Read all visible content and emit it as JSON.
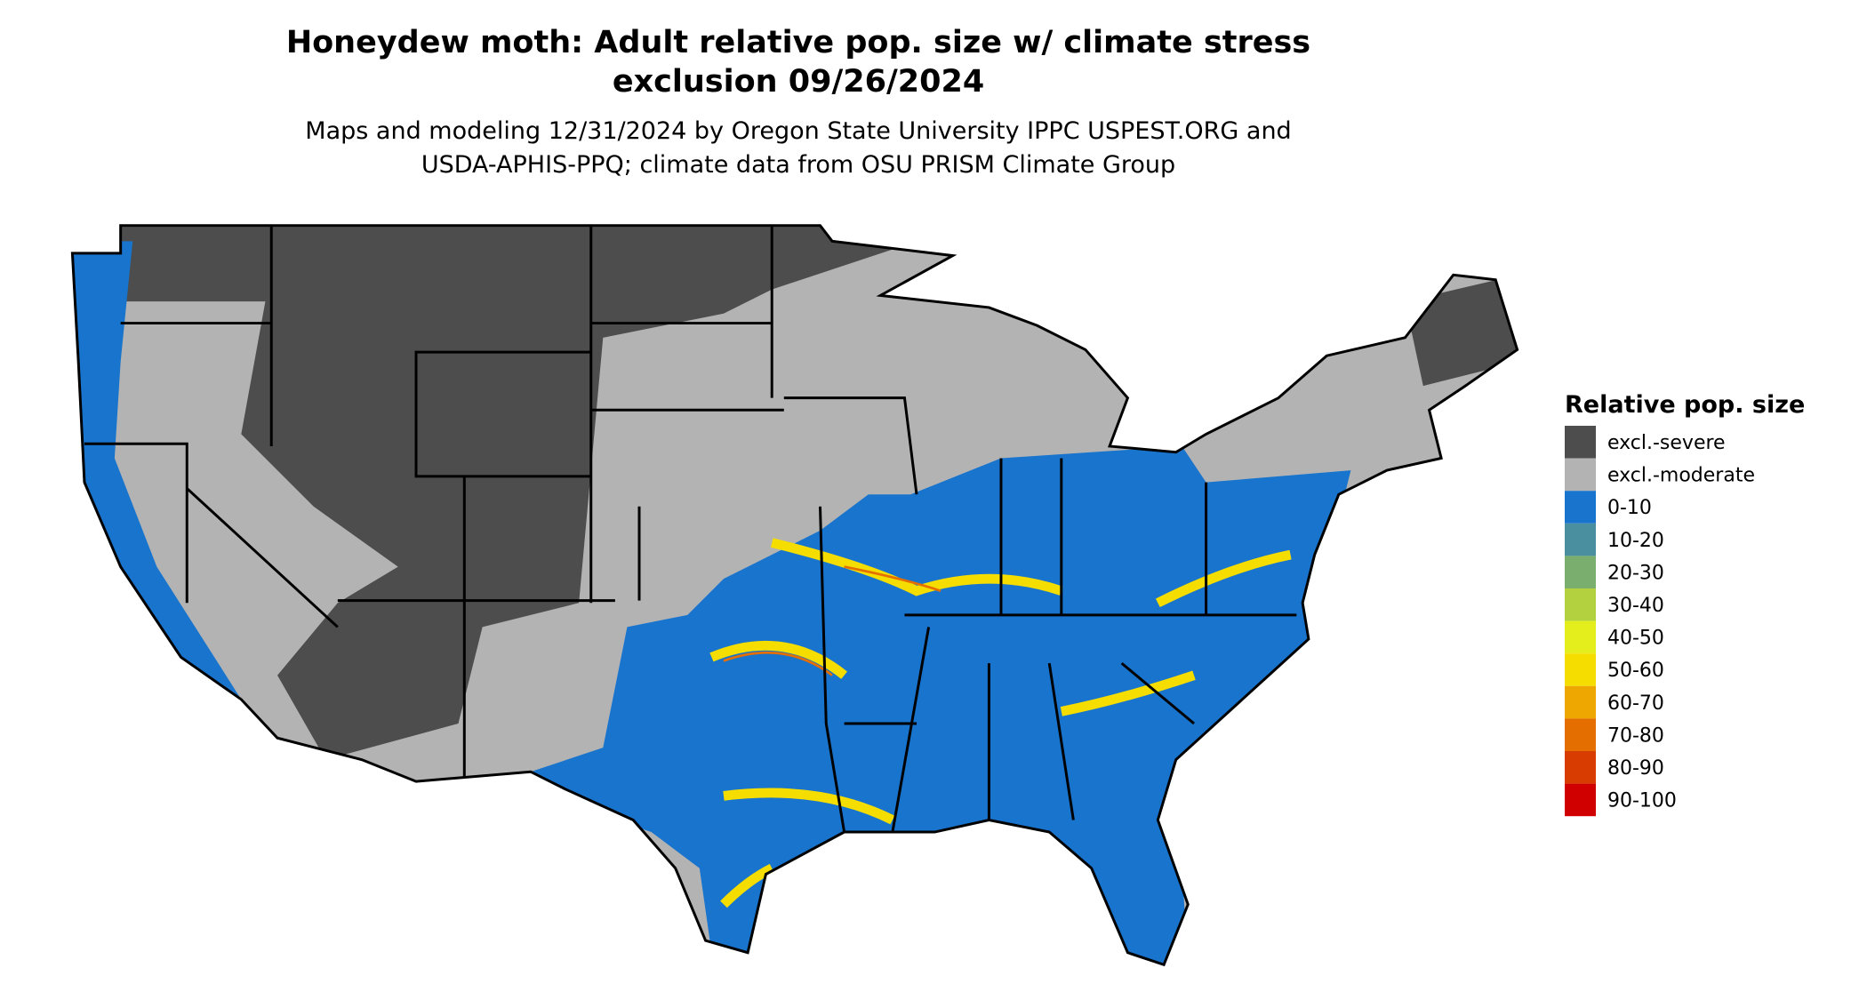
{
  "title_lines": [
    "Honeydew moth: Adult relative pop. size w/ climate stress",
    "exclusion 09/26/2024"
  ],
  "subtitle_lines": [
    "Maps and modeling 12/31/2024 by Oregon State University IPPC USPEST.ORG and",
    "USDA-APHIS-PPQ; climate data from OSU PRISM Climate Group"
  ],
  "legend": {
    "title": "Relative pop. size",
    "items": [
      {
        "label": "excl.-severe",
        "color": "#4d4d4d"
      },
      {
        "label": "excl.-moderate",
        "color": "#b3b3b3"
      },
      {
        "label": "0-10",
        "color": "#1874cd"
      },
      {
        "label": "10-20",
        "color": "#4a8fa0"
      },
      {
        "label": "20-30",
        "color": "#7aae6e"
      },
      {
        "label": "30-40",
        "color": "#b3d03e"
      },
      {
        "label": "40-50",
        "color": "#e3ee1c"
      },
      {
        "label": "50-60",
        "color": "#f5dd00"
      },
      {
        "label": "60-70",
        "color": "#eea600"
      },
      {
        "label": "70-80",
        "color": "#e56e00"
      },
      {
        "label": "80-90",
        "color": "#d83c00"
      },
      {
        "label": "90-100",
        "color": "#d00000"
      }
    ]
  }
}
